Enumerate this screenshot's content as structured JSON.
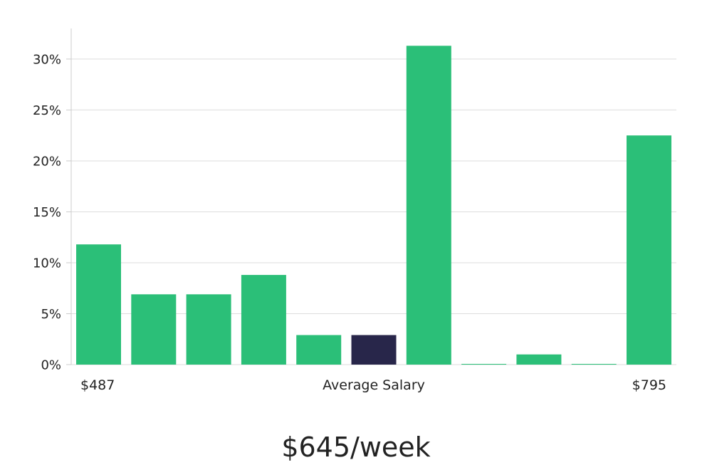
{
  "chart_data": {
    "type": "bar",
    "categories": [
      "",
      "",
      "",
      "",
      "",
      "",
      "",
      "",
      "",
      "",
      ""
    ],
    "values": [
      11.8,
      6.9,
      6.9,
      8.8,
      2.9,
      2.9,
      31.3,
      0.05,
      1.0,
      0.05,
      22.5
    ],
    "highlight_index": 5,
    "ylim": [
      0,
      33
    ],
    "yticks": [
      0,
      5,
      10,
      15,
      20,
      25,
      30
    ],
    "ytick_format": "{v}%",
    "grid": true,
    "colors": {
      "bar": "#2bbf78",
      "highlight": "#28264a",
      "grid": "#dddddd",
      "axis": "#cccccc"
    },
    "x_axis_labels": {
      "left": "$487",
      "center": "Average Salary",
      "right": "$795"
    }
  },
  "headline": "$645/week"
}
